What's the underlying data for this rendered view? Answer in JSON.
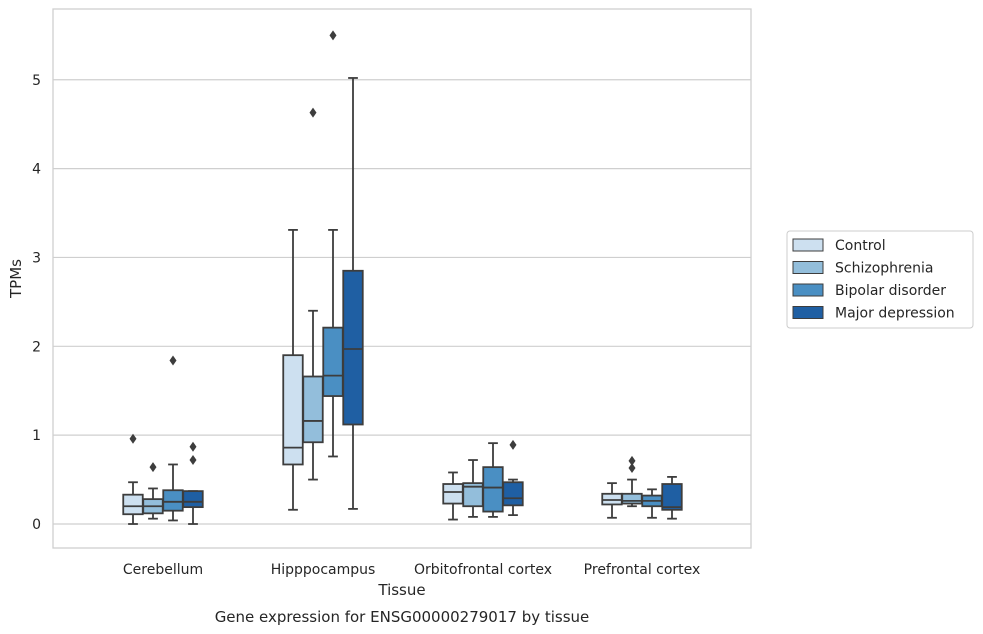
{
  "colors": {
    "series": [
      "#cde0f0",
      "#93bedb",
      "#4a8fc3",
      "#1f5fa3"
    ],
    "line": "#3d3d3d",
    "grid": "#cfcfcf",
    "frame": "#cfcfcf"
  },
  "chart_data": {
    "type": "box",
    "title": "",
    "caption": "Gene expression for ENSG00000279017 by tissue",
    "xlabel": "Tissue",
    "ylabel": "TPMs",
    "ylim": [
      -0.26,
      5.8
    ],
    "yticks": [
      0,
      1,
      2,
      3,
      4,
      5
    ],
    "grid": true,
    "legend_position": "right",
    "categories": [
      "Cerebellum",
      "Hipppocampus",
      "Orbitofrontal cortex",
      "Prefrontal cortex"
    ],
    "series": [
      {
        "name": "Control",
        "boxes": [
          {
            "whislo": 0.0,
            "q1": 0.11,
            "med": 0.2,
            "q3": 0.33,
            "whishi": 0.47,
            "fliers": [
              0.96
            ]
          },
          {
            "whislo": 0.16,
            "q1": 0.67,
            "med": 0.86,
            "q3": 1.9,
            "whishi": 3.31,
            "fliers": []
          },
          {
            "whislo": 0.05,
            "q1": 0.23,
            "med": 0.36,
            "q3": 0.45,
            "whishi": 0.58,
            "fliers": []
          },
          {
            "whislo": 0.07,
            "q1": 0.22,
            "med": 0.27,
            "q3": 0.34,
            "whishi": 0.46,
            "fliers": []
          }
        ]
      },
      {
        "name": "Schizophrenia",
        "boxes": [
          {
            "whislo": 0.06,
            "q1": 0.12,
            "med": 0.2,
            "q3": 0.28,
            "whishi": 0.4,
            "fliers": [
              0.64
            ]
          },
          {
            "whislo": 0.5,
            "q1": 0.92,
            "med": 1.16,
            "q3": 1.66,
            "whishi": 2.4,
            "fliers": [
              4.63
            ]
          },
          {
            "whislo": 0.08,
            "q1": 0.2,
            "med": 0.42,
            "q3": 0.46,
            "whishi": 0.72,
            "fliers": []
          },
          {
            "whislo": 0.2,
            "q1": 0.23,
            "med": 0.26,
            "q3": 0.34,
            "whishi": 0.5,
            "fliers": [
              0.63,
              0.71
            ]
          }
        ]
      },
      {
        "name": "Bipolar disorder",
        "boxes": [
          {
            "whislo": 0.04,
            "q1": 0.15,
            "med": 0.25,
            "q3": 0.38,
            "whishi": 0.67,
            "fliers": [
              1.84
            ]
          },
          {
            "whislo": 0.76,
            "q1": 1.44,
            "med": 1.67,
            "q3": 2.21,
            "whishi": 3.31,
            "fliers": [
              5.5
            ]
          },
          {
            "whislo": 0.08,
            "q1": 0.14,
            "med": 0.41,
            "q3": 0.64,
            "whishi": 0.91,
            "fliers": []
          },
          {
            "whislo": 0.07,
            "q1": 0.2,
            "med": 0.26,
            "q3": 0.32,
            "whishi": 0.39,
            "fliers": []
          }
        ]
      },
      {
        "name": "Major depression",
        "boxes": [
          {
            "whislo": 0.0,
            "q1": 0.19,
            "med": 0.25,
            "q3": 0.37,
            "whishi": 0.37,
            "fliers": [
              0.72,
              0.87
            ]
          },
          {
            "whislo": 0.17,
            "q1": 1.12,
            "med": 1.97,
            "q3": 2.85,
            "whishi": 5.02,
            "fliers": []
          },
          {
            "whislo": 0.1,
            "q1": 0.21,
            "med": 0.29,
            "q3": 0.47,
            "whishi": 0.5,
            "fliers": [
              0.89
            ]
          },
          {
            "whislo": 0.06,
            "q1": 0.16,
            "med": 0.19,
            "q3": 0.45,
            "whishi": 0.53,
            "fliers": []
          }
        ]
      }
    ]
  }
}
